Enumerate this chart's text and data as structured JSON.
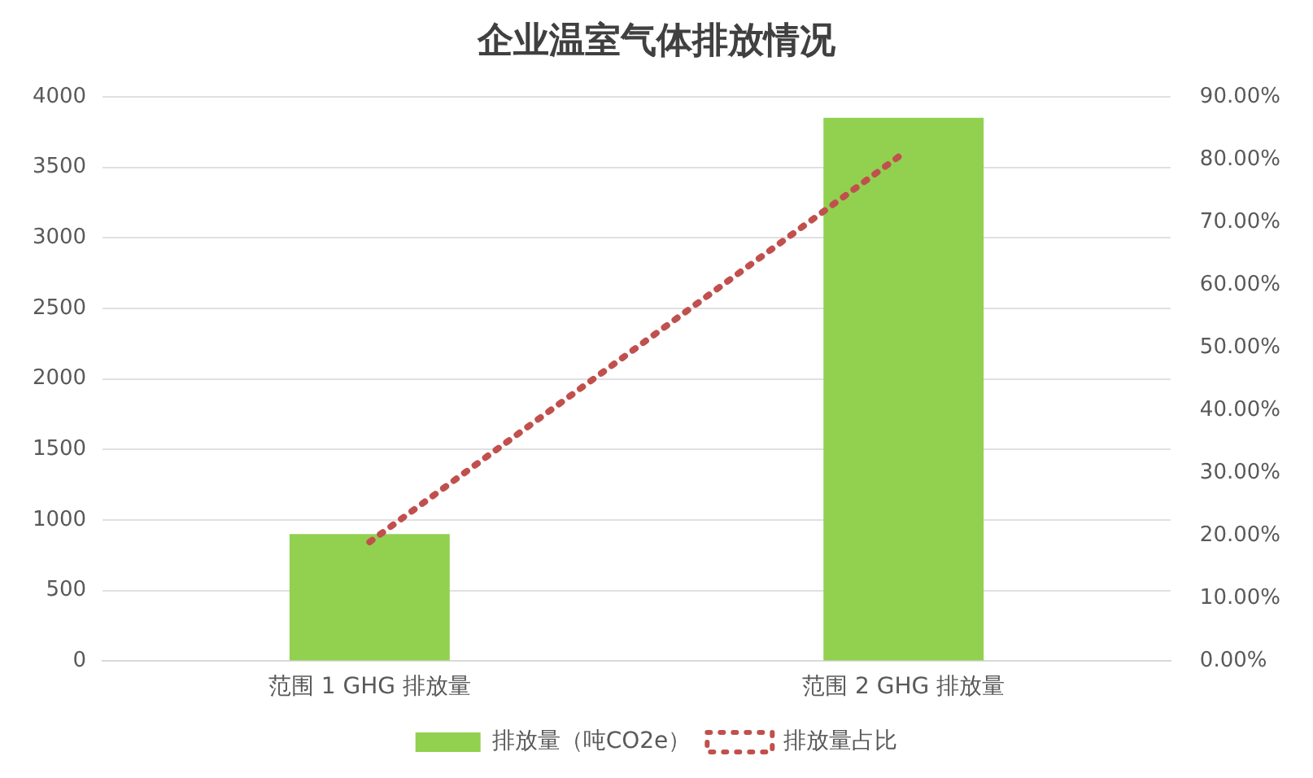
{
  "chart_data": {
    "type": "bar",
    "title": "企业温室气体排放情况",
    "categories": [
      "范围 1 GHG 排放量",
      "范围 2 GHG 排放量"
    ],
    "series": [
      {
        "name": "排放量（吨CO2e）",
        "color": "#92d050",
        "values": [
          900,
          3850
        ]
      },
      {
        "name": "排放量占比",
        "type": "line",
        "axis": "y2",
        "color": "#c0504d",
        "line_style": "dotted",
        "marker": "none",
        "values": [
          19,
          81
        ]
      }
    ],
    "ylim": [
      0,
      4000
    ],
    "yticks": [
      0,
      500,
      1000,
      1500,
      2000,
      2500,
      3000,
      3500,
      4000
    ],
    "y2lim": [
      0,
      90
    ],
    "y2ticks": [
      {
        "value": 0,
        "label": "0.00%"
      },
      {
        "value": 10,
        "label": "10.00%"
      },
      {
        "value": 20,
        "label": "20.00%"
      },
      {
        "value": 30,
        "label": "30.00%"
      },
      {
        "value": 40,
        "label": "40.00%"
      },
      {
        "value": 50,
        "label": "50.00%"
      },
      {
        "value": 60,
        "label": "60.00%"
      },
      {
        "value": 70,
        "label": "70.00%"
      },
      {
        "value": 80,
        "label": "80.00%"
      },
      {
        "value": 90,
        "label": "90.00%"
      }
    ],
    "grid": "y",
    "legend": "bottom"
  }
}
